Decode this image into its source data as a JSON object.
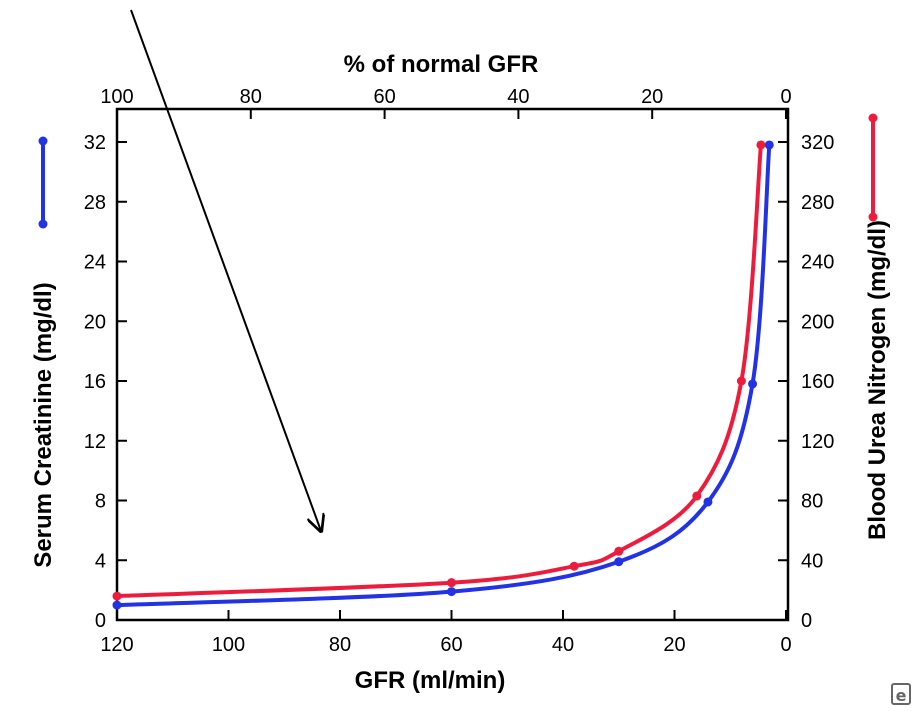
{
  "chart_data": {
    "type": "line",
    "x_bottom": {
      "label": "GFR (ml/min)",
      "ticks": [
        "120",
        "100",
        "80",
        "60",
        "40",
        "20",
        "0"
      ],
      "range": [
        120,
        0
      ]
    },
    "x_top": {
      "label": "% of normal GFR",
      "ticks": [
        "100",
        "80",
        "60",
        "40",
        "20",
        "0"
      ],
      "range": [
        100,
        0
      ]
    },
    "y_left": {
      "label": "Serum Creatinine (mg/dl)",
      "ticks": [
        "0",
        "4",
        "8",
        "12",
        "16",
        "20",
        "24",
        "28",
        "32"
      ],
      "range": [
        0,
        32
      ]
    },
    "y_right": {
      "label": "Blood Urea Nitrogen (mg/dl)",
      "ticks": [
        "0",
        "40",
        "80",
        "120",
        "160",
        "200",
        "240",
        "280",
        "320"
      ],
      "range": [
        0,
        320
      ]
    },
    "series": [
      {
        "axis": "left",
        "color": "#2233e6",
        "x": [
          120,
          60,
          30,
          14,
          6,
          3
        ],
        "y": [
          1.0,
          1.9,
          3.9,
          7.9,
          15.8,
          31.8
        ]
      },
      {
        "axis": "right",
        "color": "#ee1c3c",
        "x": [
          120,
          60,
          38,
          30,
          16,
          8,
          4.5
        ],
        "y": [
          16,
          25,
          36,
          46,
          83,
          160,
          318
        ]
      }
    ],
    "legend": [
      {
        "axis": "left",
        "color": "#2233e6",
        "marker": "line-with-dots"
      },
      {
        "axis": "right",
        "color": "#ee1c3c",
        "marker": "line-with-dots"
      }
    ],
    "annotations": [
      {
        "type": "arrow",
        "color": "#000000",
        "points_to_gfr": 84,
        "points_to_creatinine": 5.8
      }
    ],
    "grid": false
  },
  "watermark_icon": "e-logo-icon"
}
